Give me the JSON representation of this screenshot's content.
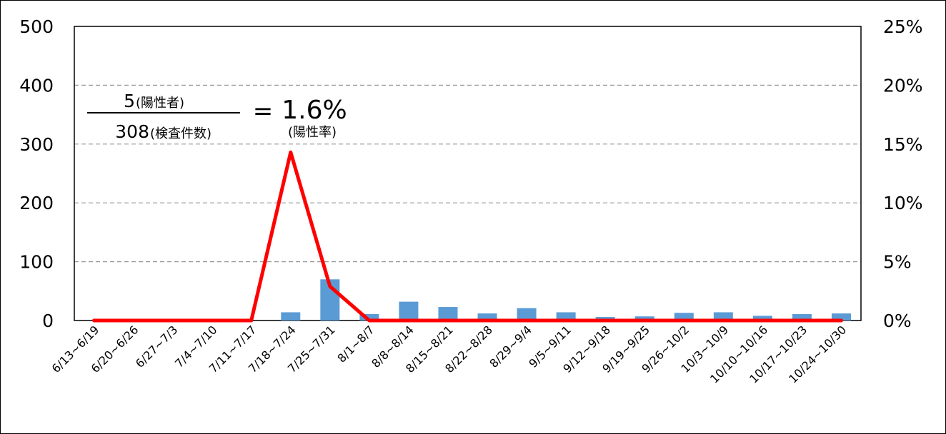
{
  "chart_data": {
    "type": "bar+line",
    "categories": [
      "6/13~6/19",
      "6/20~6/26",
      "6/27~7/3",
      "7/4~7/10",
      "7/11~7/17",
      "7/18~7/24",
      "7/25~7/31",
      "8/1~8/7",
      "8/8~8/14",
      "8/15~8/21",
      "8/22~8/28",
      "8/29~9/4",
      "9/5~9/11",
      "9/12~9/18",
      "9/19~9/25",
      "9/26~10/2",
      "10/3~10/9",
      "10/10~10/16",
      "10/17~10/23",
      "10/24~10/30"
    ],
    "series": [
      {
        "type": "bar",
        "axis": "left",
        "color": "#5b9bd5",
        "values": [
          0,
          0,
          0,
          0,
          0,
          14,
          70,
          11,
          32,
          23,
          12,
          21,
          14,
          6,
          7,
          13,
          14,
          8,
          11,
          12
        ]
      },
      {
        "type": "line",
        "axis": "right",
        "color": "#ff0000",
        "values": [
          0,
          0,
          0,
          0,
          0,
          0.143,
          0.029,
          0,
          0,
          0,
          0,
          0,
          0,
          0,
          0,
          0,
          0,
          0,
          0,
          0
        ]
      }
    ],
    "y_left": {
      "min": 0,
      "max": 500,
      "ticks": [
        "0",
        "100",
        "200",
        "300",
        "400",
        "500"
      ]
    },
    "y_right": {
      "min": 0,
      "max": 0.25,
      "ticks": [
        "0%",
        "5%",
        "10%",
        "15%",
        "20%",
        "25%"
      ]
    },
    "grid": "horizontal-dashed",
    "annotation": {
      "numerator": "5",
      "numerator_label": "(陽性者)",
      "denominator": "308",
      "denominator_label": "(検査件数)",
      "equals": "=",
      "result": "1.6%",
      "result_label": "(陽性率)"
    }
  }
}
